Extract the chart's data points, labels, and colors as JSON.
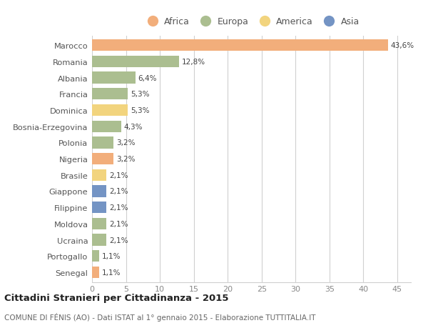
{
  "countries": [
    "Marocco",
    "Romania",
    "Albania",
    "Francia",
    "Dominica",
    "Bosnia-Erzegovina",
    "Polonia",
    "Nigeria",
    "Brasile",
    "Giappone",
    "Filippine",
    "Moldova",
    "Ucraina",
    "Portogallo",
    "Senegal"
  ],
  "values": [
    43.6,
    12.8,
    6.4,
    5.3,
    5.3,
    4.3,
    3.2,
    3.2,
    2.1,
    2.1,
    2.1,
    2.1,
    2.1,
    1.1,
    1.1
  ],
  "labels": [
    "43,6%",
    "12,8%",
    "6,4%",
    "5,3%",
    "5,3%",
    "4,3%",
    "3,2%",
    "3,2%",
    "2,1%",
    "2,1%",
    "2,1%",
    "2,1%",
    "2,1%",
    "1,1%",
    "1,1%"
  ],
  "continents": [
    "Africa",
    "Europa",
    "Europa",
    "Europa",
    "America",
    "Europa",
    "Europa",
    "Africa",
    "America",
    "Asia",
    "Asia",
    "Europa",
    "Europa",
    "Europa",
    "Africa"
  ],
  "continent_colors": {
    "Africa": "#F2AE7B",
    "Europa": "#ABBE90",
    "America": "#F2D47E",
    "Asia": "#7494C4"
  },
  "legend_order": [
    "Africa",
    "Europa",
    "America",
    "Asia"
  ],
  "legend_colors": [
    "#F2AE7B",
    "#ABBE90",
    "#F2D47E",
    "#7494C4"
  ],
  "background_color": "#ffffff",
  "grid_color": "#d0d0d0",
  "title": "Cittadini Stranieri per Cittadinanza - 2015",
  "subtitle": "COMUNE DI FÉNIS (AO) - Dati ISTAT al 1° gennaio 2015 - Elaborazione TUTTITALIA.IT",
  "xlim": [
    0,
    47
  ],
  "xticks": [
    0,
    5,
    10,
    15,
    20,
    25,
    30,
    35,
    40,
    45
  ]
}
